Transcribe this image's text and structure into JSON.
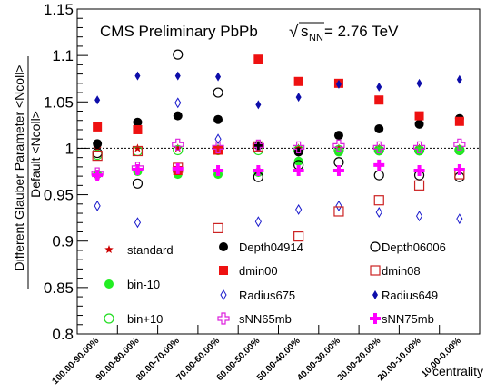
{
  "chart_data": {
    "type": "scatter",
    "title": "CMS Preliminary PbPb",
    "energy_label": {
      "prefix": "√",
      "s": "s",
      "sub": "NN",
      "suffix": " = 2.76 TeV"
    },
    "xlabel": "centrality",
    "ylabel_top": "Different Glauber Parameter <Ncoll>",
    "ylabel_bottom": "Default <Ncoll>",
    "categories": [
      "100.00-90.00%",
      "90.00-80.00%",
      "80.00-70.00%",
      "70.00-60.00%",
      "60.00-50.00%",
      "50.00-40.00%",
      "40.00-30.00%",
      "30.00-20.00%",
      "20.00-10.00%",
      "10.00-0.00%"
    ],
    "ylim": [
      0.8,
      1.15
    ],
    "yticks": [
      "0.8",
      "0.85",
      "0.9",
      "0.95",
      "1",
      "1.05",
      "1.1",
      "1.15"
    ],
    "reference_line": 1,
    "legend_placement": "lower area inside plot, three columns",
    "series": [
      {
        "name": "standard",
        "marker": "star-filled",
        "color": "#cc0000",
        "values": [
          1.0,
          1.0,
          1.0,
          1.0,
          1.0,
          1.0,
          1.0,
          1.0,
          1.0,
          1.0
        ]
      },
      {
        "name": "bin-10",
        "marker": "circle-filled",
        "color": "#22ee22",
        "values": [
          0.972,
          0.975,
          0.972,
          0.972,
          0.974,
          0.986,
          0.996,
          0.997,
          0.997,
          0.998
        ]
      },
      {
        "name": "bin+10",
        "marker": "circle-open",
        "color": "#22dd22",
        "values": [
          0.993,
          0.997,
          0.998,
          0.998,
          0.998,
          0.998,
          0.998,
          0.998,
          0.998,
          0.998
        ]
      },
      {
        "name": "Depth04914",
        "marker": "circle-filled",
        "color": "#000000",
        "values": [
          1.005,
          1.028,
          1.035,
          1.031,
          1.003,
          0.996,
          1.014,
          1.021,
          1.026,
          1.032
        ]
      },
      {
        "name": "dmin00",
        "marker": "square-filled",
        "color": "#ee1111",
        "values": [
          1.023,
          1.02,
          0.976,
          0.998,
          1.096,
          1.072,
          1.07,
          1.052,
          1.035,
          1.029
        ]
      },
      {
        "name": "Radius675",
        "marker": "diamond-open",
        "color": "#1a1acc",
        "values": [
          0.938,
          0.92,
          1.049,
          1.01,
          0.921,
          0.934,
          0.938,
          0.931,
          0.927,
          0.924
        ]
      },
      {
        "name": "sNN65mb",
        "marker": "cross-open",
        "color": "#dd22dd",
        "values": [
          0.973,
          0.979,
          1.004,
          1.001,
          1.003,
          1.001,
          1.003,
          1.001,
          1.001,
          1.004
        ]
      },
      {
        "name": "Depth06006",
        "marker": "circle-open",
        "color": "#000000",
        "values": [
          0.995,
          0.962,
          1.101,
          1.06,
          0.969,
          0.982,
          0.985,
          0.971,
          0.971,
          0.969
        ]
      },
      {
        "name": "dmin08",
        "marker": "square-open",
        "color": "#cc2222",
        "values": [
          0.992,
          0.997,
          0.979,
          0.914,
          1.002,
          0.905,
          0.932,
          0.944,
          0.96,
          0.972
        ]
      },
      {
        "name": "Radius649",
        "marker": "diamond-filled",
        "color": "#0d0daa",
        "values": [
          1.052,
          1.078,
          1.078,
          1.077,
          1.047,
          1.055,
          1.069,
          1.066,
          1.07,
          1.074
        ]
      },
      {
        "name": "sNN75mb",
        "marker": "cross-filled",
        "color": "#ff00ff",
        "values": [
          0.971,
          0.977,
          0.978,
          0.976,
          0.976,
          0.976,
          0.976,
          0.982,
          0.976,
          0.977
        ]
      }
    ]
  }
}
